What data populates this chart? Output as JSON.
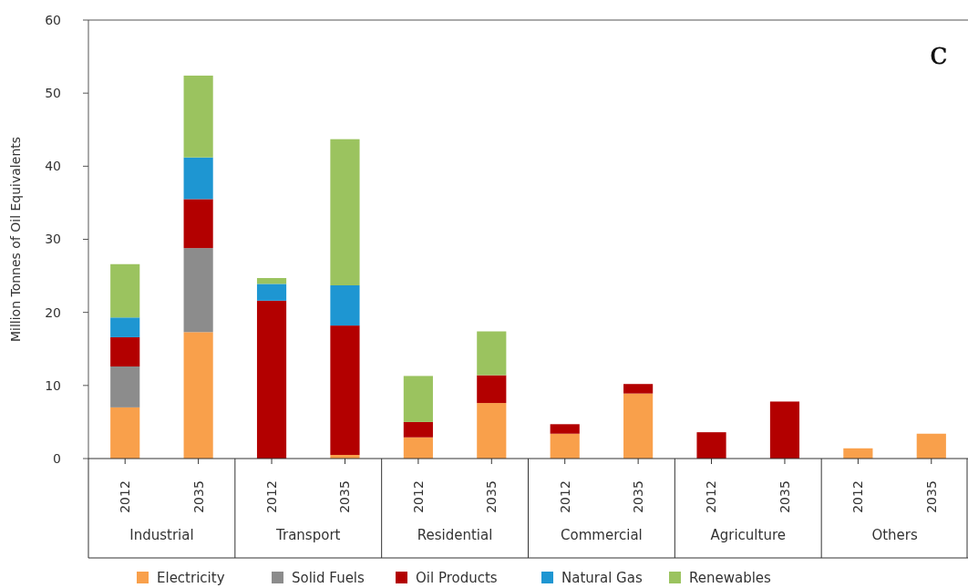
{
  "chart_data": {
    "type": "bar",
    "stacked": true,
    "title": "c",
    "ylabel": "Million Tonnes of Oil Equivalents",
    "categories": [
      "2012",
      "2035",
      "2012",
      "2035",
      "2012",
      "2035",
      "2012",
      "2035",
      "2012",
      "2035",
      "2012",
      "2035"
    ],
    "annotations": [
      "Industrial",
      "Transport",
      "Residential",
      "Commercial",
      "Agriculture",
      "Others"
    ],
    "series": [
      {
        "name": "Electricity",
        "color": "#f9a04b",
        "values": [
          7.0,
          17.3,
          0,
          0.5,
          2.9,
          7.6,
          3.4,
          8.9,
          0,
          0,
          1.4,
          3.4
        ]
      },
      {
        "name": "Solid Fuels",
        "color": "#8c8c8c",
        "values": [
          5.6,
          11.5,
          0,
          0,
          0,
          0,
          0,
          0,
          0,
          0,
          0,
          0
        ]
      },
      {
        "name": "Oil Products",
        "color": "#b30000",
        "values": [
          4.0,
          6.7,
          21.6,
          17.7,
          2.1,
          3.8,
          1.3,
          1.3,
          3.6,
          7.8,
          0,
          0
        ]
      },
      {
        "name": "Natural Gas",
        "color": "#1e96d2",
        "values": [
          2.7,
          5.7,
          2.3,
          5.5,
          0,
          0,
          0,
          0,
          0,
          0,
          0,
          0
        ]
      },
      {
        "name": "Renewables",
        "color": "#9bc35f",
        "values": [
          7.3,
          11.2,
          0.8,
          20.0,
          6.3,
          6.0,
          0,
          0,
          0,
          0,
          0,
          0
        ]
      }
    ],
    "ylim": [
      0,
      60
    ],
    "yticks": [
      0,
      10,
      20,
      30,
      40,
      50,
      60
    ],
    "grid": false,
    "legend": "bottom"
  }
}
